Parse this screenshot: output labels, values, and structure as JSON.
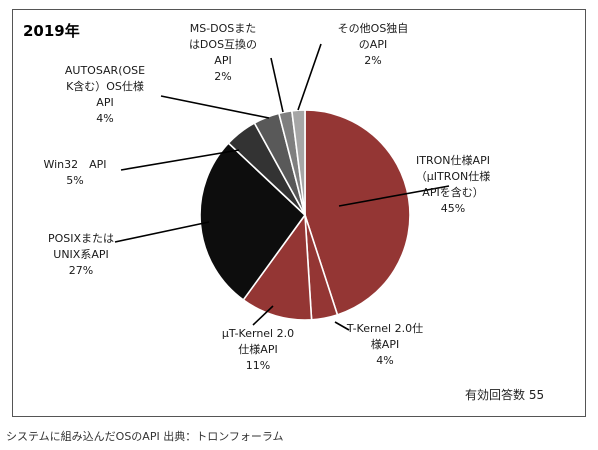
{
  "chart_data": {
    "type": "pie",
    "title": "2019年",
    "annotation": "有効回答数 55",
    "slices": [
      {
        "lines": [
          "ITRON仕様API",
          "（μITRON仕様",
          "APIを含む）"
        ],
        "percent_label": "45%",
        "value": 45,
        "color": "#943634"
      },
      {
        "lines": [
          "T-Kernel 2.0仕",
          "様API"
        ],
        "percent_label": "4%",
        "value": 4,
        "color": "#943634"
      },
      {
        "lines": [
          "μT-Kernel 2.0",
          "仕様API"
        ],
        "percent_label": "11%",
        "value": 11,
        "color": "#943634"
      },
      {
        "lines": [
          "POSIXまたは",
          "UNIX系API"
        ],
        "percent_label": "27%",
        "value": 27,
        "color": "#0d0d0d"
      },
      {
        "lines": [
          "Win32　API"
        ],
        "percent_label": "5%",
        "value": 5,
        "color": "#333333"
      },
      {
        "lines": [
          "AUTOSAR(OSE",
          "K含む）OS仕様",
          "API"
        ],
        "percent_label": "4%",
        "value": 4,
        "color": "#595959"
      },
      {
        "lines": [
          "MS-DOSまた",
          "はDOS互換の",
          "API"
        ],
        "percent_label": "2%",
        "value": 2,
        "color": "#7f7f7f"
      },
      {
        "lines": [
          "その他OS独自",
          "のAPI"
        ],
        "percent_label": "2%",
        "value": 2,
        "color": "#a6a6a6"
      }
    ]
  },
  "caption": "システムに組み込んだOSのAPI 出典：トロンフォーラム"
}
